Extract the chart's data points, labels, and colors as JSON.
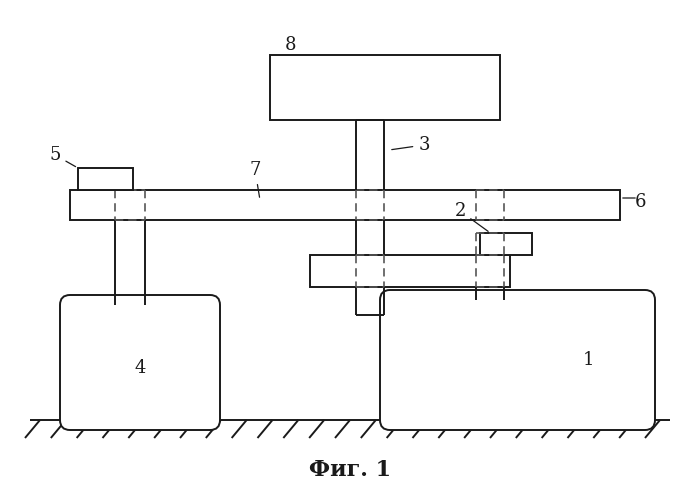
{
  "bg_color": "#ffffff",
  "line_color": "#1a1a1a",
  "dashed_color": "#555555",
  "caption": "Фиг. 1",
  "caption_fontsize": 16,
  "label_fontsize": 13,
  "lw": 1.4
}
